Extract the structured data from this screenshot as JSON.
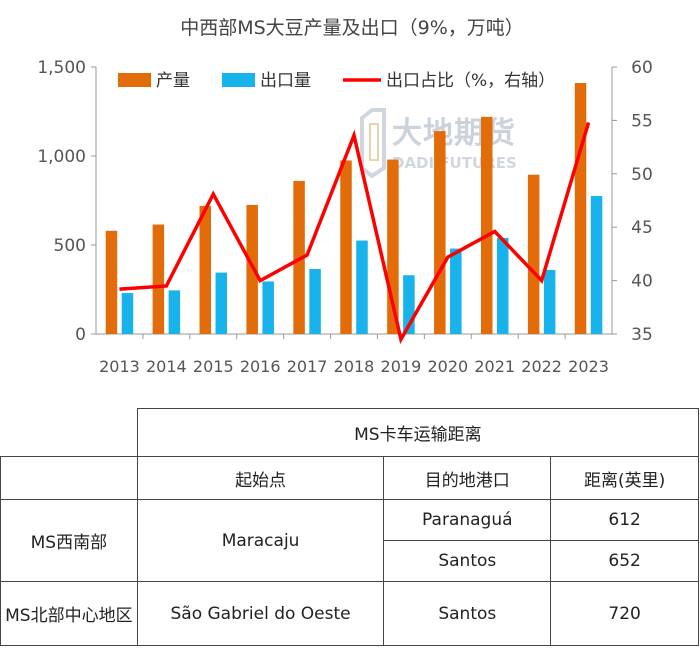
{
  "chart_data": {
    "type": "bar+line",
    "title": "中西部MS大豆产量及出口（9%，万吨）",
    "categories": [
      "2013",
      "2014",
      "2015",
      "2016",
      "2017",
      "2018",
      "2019",
      "2020",
      "2021",
      "2022",
      "2023"
    ],
    "series": [
      {
        "name": "产量",
        "type": "bar",
        "axis": "left",
        "color": "#E36C0A",
        "values": [
          580,
          615,
          720,
          725,
          860,
          975,
          980,
          1140,
          1220,
          895,
          1410
        ]
      },
      {
        "name": "出口量",
        "type": "bar",
        "axis": "left",
        "color": "#17B3EA",
        "values": [
          230,
          245,
          345,
          295,
          365,
          525,
          330,
          480,
          540,
          360,
          775
        ]
      },
      {
        "name": "出口占比（%，右轴）",
        "type": "line",
        "axis": "right",
        "color": "#FF0000",
        "values": [
          39.2,
          39.5,
          48.1,
          40.0,
          42.4,
          53.6,
          34.5,
          42.2,
          44.6,
          40.0,
          54.8
        ]
      }
    ],
    "left_axis": {
      "ylim": [
        0,
        1500
      ],
      "ticks": [
        0,
        500,
        1000,
        1500
      ],
      "tick_labels": [
        "0",
        "500",
        "1,000",
        "1,500"
      ]
    },
    "right_axis": {
      "ylim": [
        35,
        60
      ],
      "ticks": [
        35,
        40,
        45,
        50,
        55,
        60
      ],
      "tick_labels": [
        "35",
        "40",
        "45",
        "50",
        "55",
        "60"
      ]
    },
    "legend_position": "top",
    "grid": false
  },
  "watermark": {
    "name": "大地期货",
    "sub": "DADI FUTURES"
  },
  "table": {
    "header_main": "MS卡车运输距离",
    "columns": [
      "起始点",
      "目的地港口",
      "距离(英里)"
    ],
    "rows": [
      {
        "region": "MS西南部",
        "origin": "Maracaju",
        "destination": "Paranaguá",
        "distance": "612"
      },
      {
        "destination": "Santos",
        "distance": "652"
      },
      {
        "region": "MS北部中心地区",
        "origin": "São Gabriel do Oeste",
        "destination": "Santos",
        "distance": "720"
      }
    ]
  }
}
